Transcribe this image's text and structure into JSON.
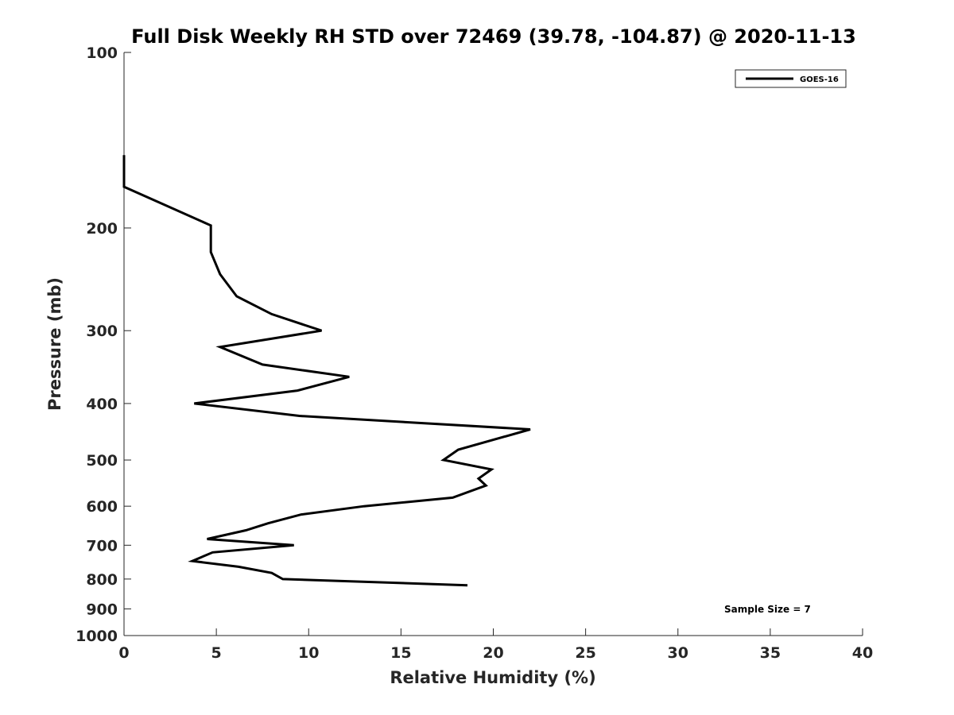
{
  "chart_data": {
    "type": "line",
    "title": "Full Disk Weekly RH STD over 72469 (39.78, -104.87) @ 2020-11-13",
    "xlabel": "Relative Humidity (%)",
    "ylabel": "Pressure (mb)",
    "xlim": [
      0,
      40
    ],
    "ylim": [
      100,
      1000
    ],
    "y_scale": "log",
    "y_reversed": true,
    "x_ticks": [
      0,
      5,
      10,
      15,
      20,
      25,
      30,
      35,
      40
    ],
    "y_ticks": [
      100,
      200,
      300,
      400,
      500,
      600,
      700,
      800,
      900,
      1000
    ],
    "grid": false,
    "legend_position": "top-right",
    "series": [
      {
        "name": "GOES-16",
        "color": "#000000",
        "points": [
          {
            "x": 0.0,
            "y": 150
          },
          {
            "x": 0.0,
            "y": 170
          },
          {
            "x": 4.7,
            "y": 198
          },
          {
            "x": 4.7,
            "y": 220
          },
          {
            "x": 5.2,
            "y": 240
          },
          {
            "x": 6.1,
            "y": 262
          },
          {
            "x": 8.0,
            "y": 281
          },
          {
            "x": 10.7,
            "y": 300
          },
          {
            "x": 5.2,
            "y": 320
          },
          {
            "x": 7.5,
            "y": 343
          },
          {
            "x": 12.2,
            "y": 360
          },
          {
            "x": 9.4,
            "y": 380
          },
          {
            "x": 3.8,
            "y": 400
          },
          {
            "x": 9.5,
            "y": 420
          },
          {
            "x": 22.0,
            "y": 443
          },
          {
            "x": 18.1,
            "y": 480
          },
          {
            "x": 17.3,
            "y": 500
          },
          {
            "x": 19.9,
            "y": 519
          },
          {
            "x": 19.2,
            "y": 538
          },
          {
            "x": 19.6,
            "y": 553
          },
          {
            "x": 17.8,
            "y": 580
          },
          {
            "x": 13.0,
            "y": 600
          },
          {
            "x": 9.6,
            "y": 620
          },
          {
            "x": 7.8,
            "y": 642
          },
          {
            "x": 6.6,
            "y": 660
          },
          {
            "x": 4.5,
            "y": 683
          },
          {
            "x": 9.2,
            "y": 700
          },
          {
            "x": 4.8,
            "y": 720
          },
          {
            "x": 3.7,
            "y": 745
          },
          {
            "x": 6.2,
            "y": 762
          },
          {
            "x": 8.0,
            "y": 781
          },
          {
            "x": 8.6,
            "y": 800
          },
          {
            "x": 18.6,
            "y": 820
          }
        ]
      }
    ],
    "annotations": [
      "Sample Size = 7"
    ]
  }
}
